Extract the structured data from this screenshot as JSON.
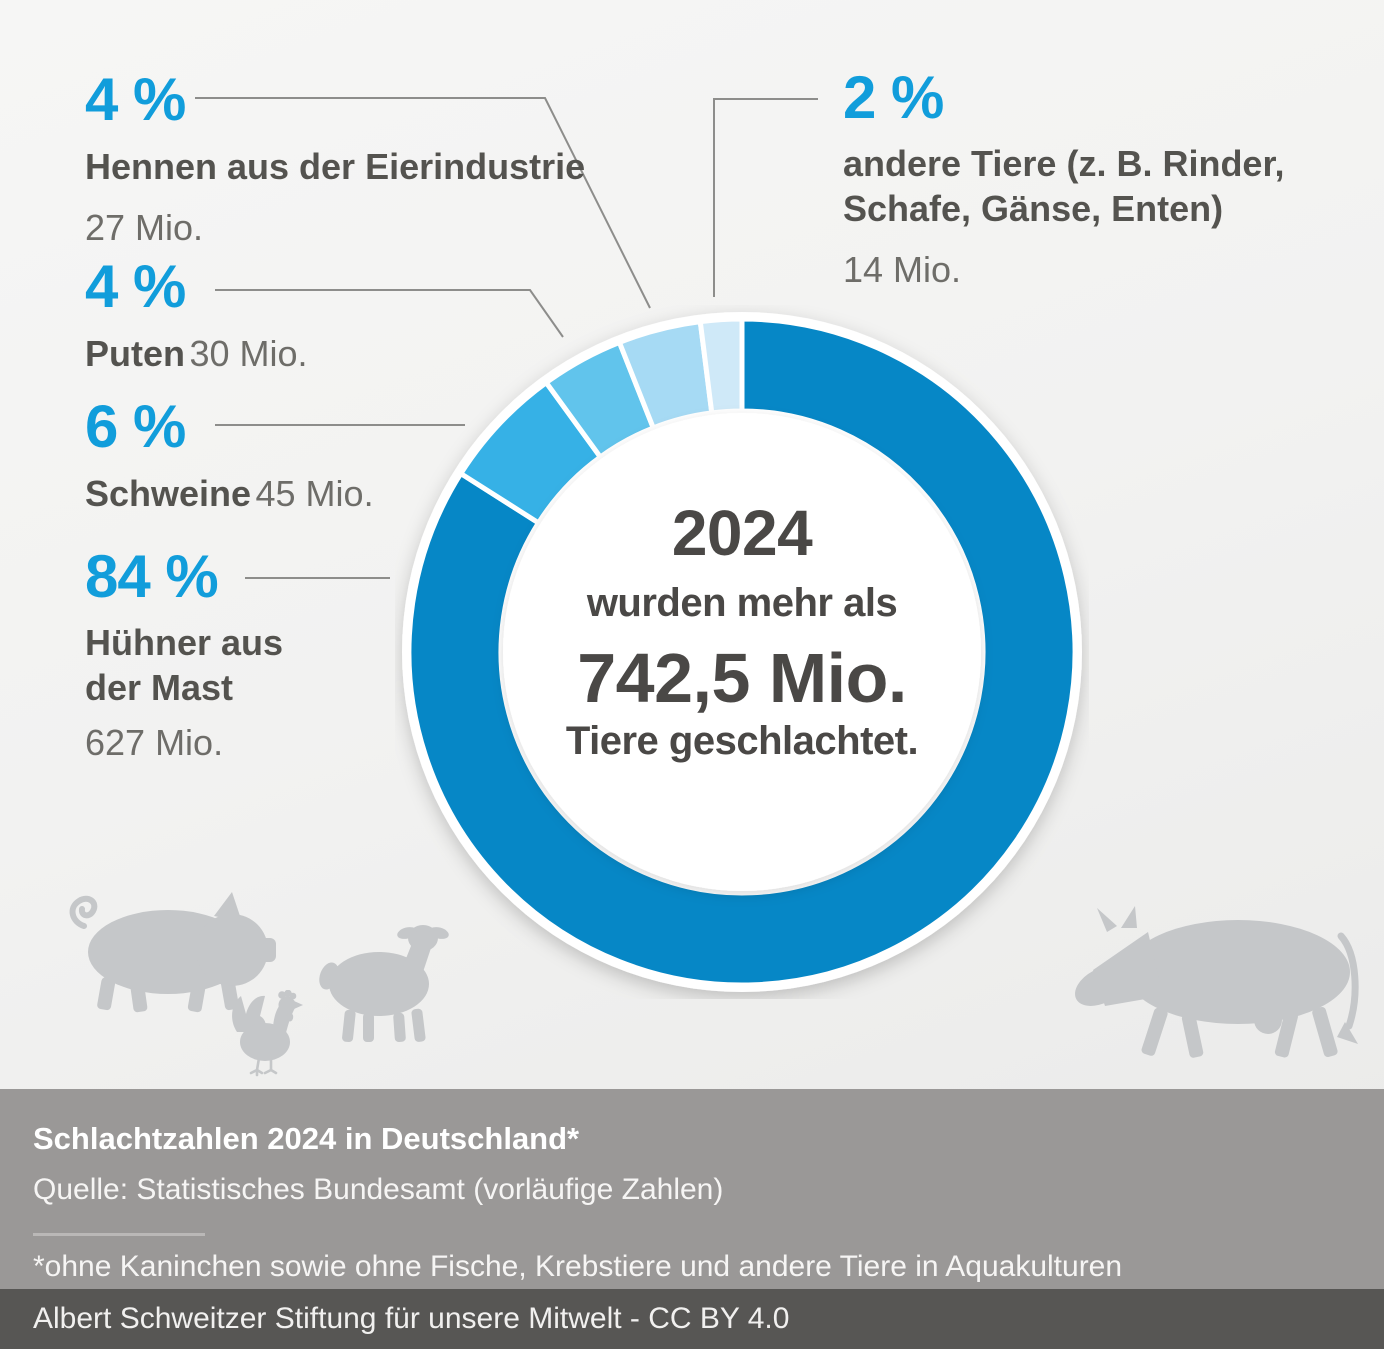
{
  "chart_data": {
    "type": "pie",
    "subtype": "donut",
    "title": "Schlachtzahlen 2024 in Deutschland*",
    "total": "742,5 Mio.",
    "unit": "Mio. Tiere",
    "segments": [
      {
        "key": "huehner",
        "label": "Hühner aus der Mast",
        "pct": 84,
        "value_mio": 627,
        "value_label": "627 Mio.",
        "color": "#0687c6"
      },
      {
        "key": "schweine",
        "label": "Schweine",
        "pct": 6,
        "value_mio": 45,
        "value_label": "45 Mio.",
        "color": "#36b1e6"
      },
      {
        "key": "puten",
        "label": "Puten",
        "pct": 4,
        "value_mio": 30,
        "value_label": "30 Mio.",
        "color": "#61c4ec"
      },
      {
        "key": "hennen",
        "label": "Hennen aus der Eierindustrie",
        "pct": 4,
        "value_mio": 27,
        "value_label": "27 Mio.",
        "color": "#a6daf4"
      },
      {
        "key": "andere",
        "label": "andere Tiere (z. B. Rinder, Schafe, Gänse, Enten)",
        "pct": 2,
        "value_mio": 14,
        "value_label": "14 Mio.",
        "color": "#cfe9f8"
      }
    ],
    "start_angle_deg": 0,
    "direction": "clockwise",
    "legend_position": "callout-labels"
  },
  "center": {
    "line1": "2024",
    "line2": "wurden mehr als",
    "line3": "742,5 Mio.",
    "line4": "Tiere geschlachtet."
  },
  "labels": {
    "hennen": {
      "pct": "4 %",
      "name": "Hennen aus der Eierindustrie",
      "value": "27 Mio."
    },
    "puten": {
      "pct": "4 %",
      "name": "Puten",
      "value": "30 Mio."
    },
    "schweine": {
      "pct": "6 %",
      "name": "Schweine",
      "value": "45 Mio."
    },
    "huehner": {
      "pct": "84 %",
      "name_line1": "Hühner aus",
      "name_line2": "der Mast",
      "value": "627 Mio."
    },
    "andere": {
      "pct": "2 %",
      "name_line1": "andere Tiere (z. B. Rinder,",
      "name_line2": "Schafe, Gänse, Enten)",
      "value": "14 Mio."
    }
  },
  "footer": {
    "title": "Schlachtzahlen 2024 in Deutschland*",
    "source": "Quelle: Statistisches Bundesamt (vorläufige Zahlen)",
    "footnote": "*ohne Kaninchen sowie ohne Fische, Krebstiere und andere Tiere in Aquakulturen",
    "credit": "Albert Schweitzer Stiftung für unsere Mitwelt - CC BY 4.0"
  },
  "colors": {
    "accent_blue": "#119ddb",
    "donut_main": "#0687c6",
    "text_dark": "#54534f",
    "text_gray": "#6e6d69",
    "leader_line": "#8d8d8b",
    "silhouette_gray": "#c5c7c9",
    "footer_band": "#9a9897",
    "footer_dark_band": "#575654"
  }
}
